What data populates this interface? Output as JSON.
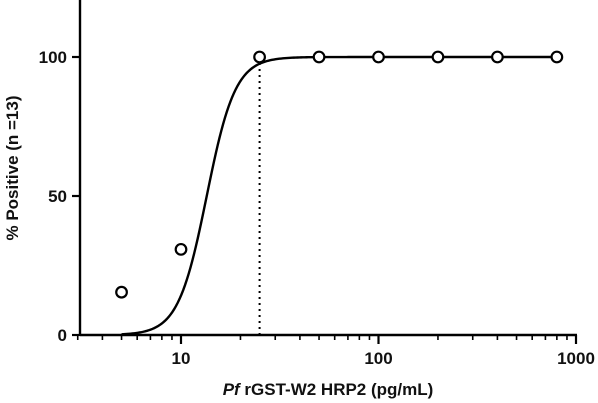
{
  "chart_data": {
    "type": "scatter",
    "x_scale": "log",
    "xlim": [
      3,
      1000
    ],
    "ylim": [
      0,
      100
    ],
    "x_ticks": [
      10,
      100,
      1000
    ],
    "x_tick_labels": [
      "10",
      "100",
      "1000"
    ],
    "y_ticks": [
      0,
      50,
      100
    ],
    "y_tick_labels": [
      "0",
      "50",
      "100"
    ],
    "xlabel_italic": "Pf",
    "xlabel_rest": " rGST-W2 HRP2 (pg/mL)",
    "ylabel": "% Positive (n =13)",
    "grid": false,
    "series": [
      {
        "points": [
          {
            "x": 5,
            "y": 15.4
          },
          {
            "x": 10,
            "y": 30.8
          },
          {
            "x": 25,
            "y": 100
          },
          {
            "x": 50,
            "y": 100
          },
          {
            "x": 100,
            "y": 100
          },
          {
            "x": 200,
            "y": 100
          },
          {
            "x": 400,
            "y": 100
          },
          {
            "x": 800,
            "y": 100
          }
        ]
      }
    ],
    "fit_curve": {
      "model": "sigmoid",
      "x_range": [
        5,
        800
      ]
    },
    "reference_line": {
      "x": 25,
      "y_from": 0,
      "y_to": 100,
      "style": "dotted"
    }
  }
}
